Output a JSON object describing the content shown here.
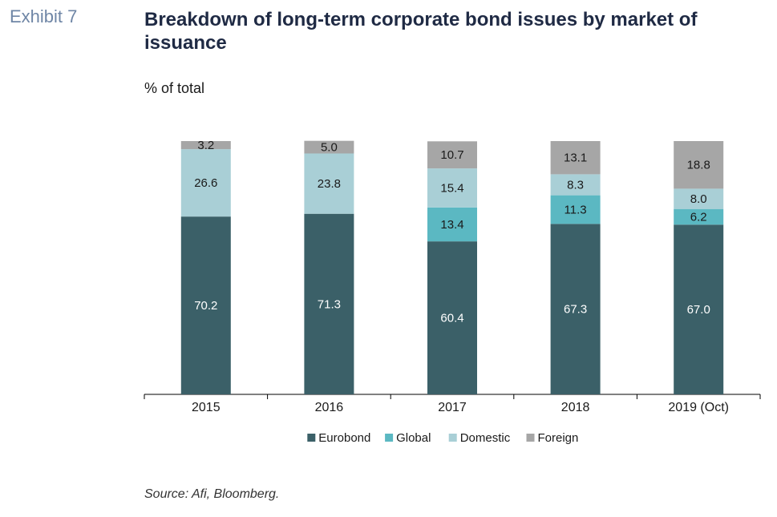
{
  "header": {
    "exhibit_label": "Exhibit 7",
    "title": "Breakdown of long-term corporate bond issues by market of issuance"
  },
  "footer": {
    "source": "Source: Afi, Bloomberg."
  },
  "chart_data": {
    "type": "bar",
    "stacked": true,
    "title": "Breakdown of long-term corporate bond issues by market of issuance",
    "subtitle": "% of total",
    "categories": [
      "2015",
      "2016",
      "2017",
      "2018",
      "2019 (Oct)"
    ],
    "series": [
      {
        "name": "Eurobond",
        "color": "#3b6068",
        "label_color": "#ffffff",
        "values": [
          70.2,
          71.3,
          60.4,
          67.3,
          67.0
        ]
      },
      {
        "name": "Global",
        "color": "#5bb8c2",
        "label_color": "#1a1a1a",
        "values": [
          null,
          null,
          13.4,
          11.3,
          6.2
        ]
      },
      {
        "name": "Domestic",
        "color": "#a9cfd6",
        "label_color": "#1a1a1a",
        "values": [
          26.6,
          23.8,
          15.4,
          8.3,
          8.0
        ]
      },
      {
        "name": "Foreign",
        "color": "#a6a6a6",
        "label_color": "#1a1a1a",
        "values": [
          3.2,
          5.0,
          10.7,
          13.1,
          18.8
        ]
      }
    ],
    "value_labels": {
      "Eurobond": [
        "70.2",
        "71.3",
        "60.4",
        "67.3",
        "67.0"
      ],
      "Global": [
        "",
        "",
        "13.4",
        "11.3",
        "6.2"
      ],
      "Domestic": [
        "26.6",
        "23.8",
        "15.4",
        "8.3",
        "8.0"
      ],
      "Foreign": [
        "3.2",
        "5.0",
        "10.7",
        "13.1",
        "18.8"
      ]
    },
    "ylim": [
      0,
      100
    ],
    "legend_position": "bottom-center",
    "grid": false
  }
}
